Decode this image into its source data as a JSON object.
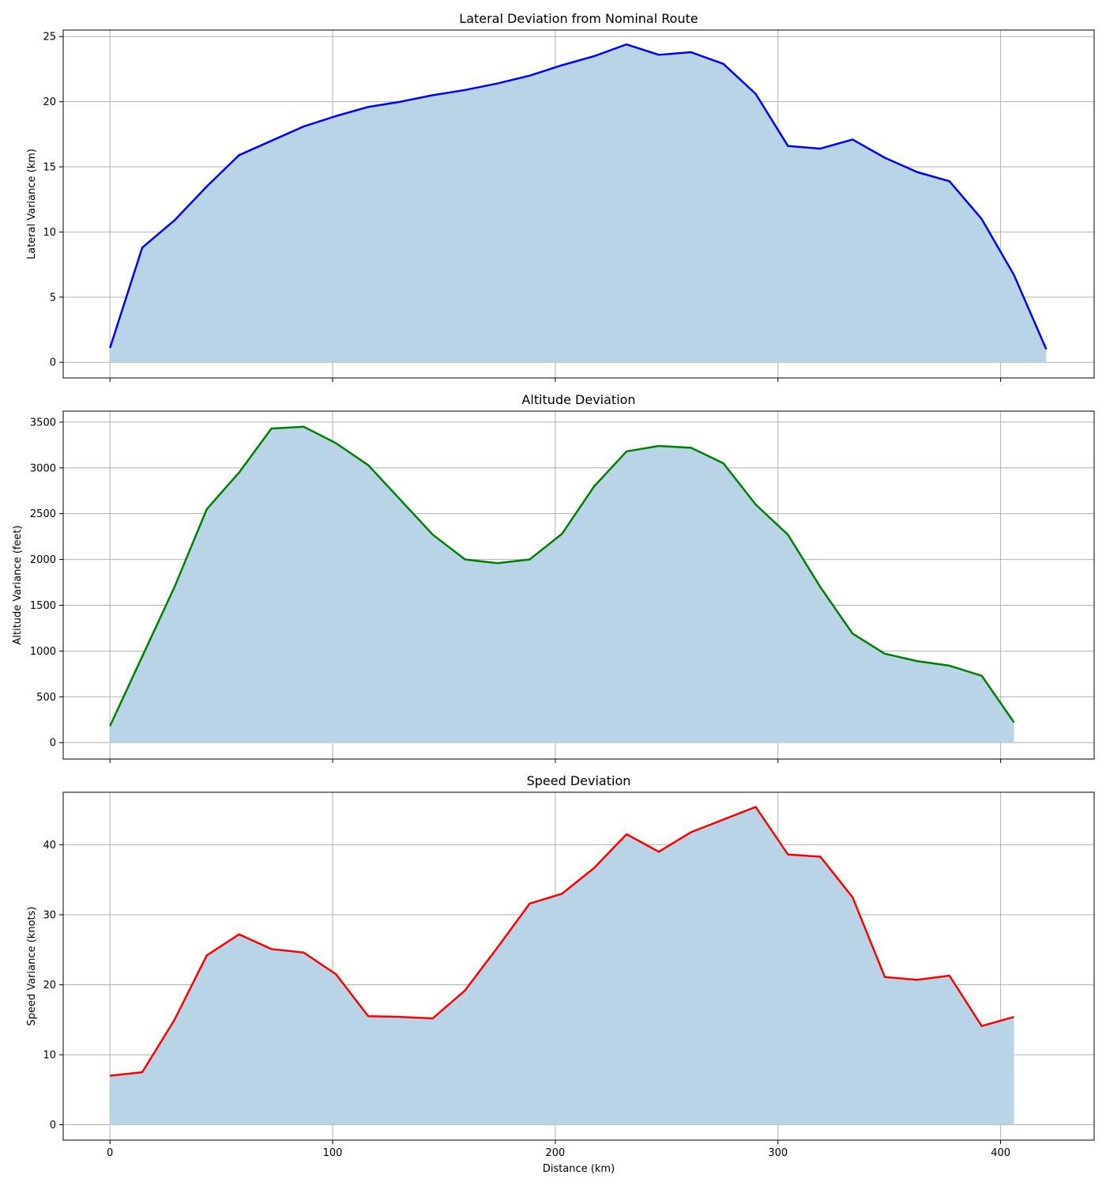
{
  "chart_data": [
    {
      "type": "area",
      "title": "Lateral Deviation from Nominal Route",
      "xlabel": "",
      "ylabel": "Lateral Variance (km)",
      "xlim": [
        -21,
        442
      ],
      "ylim": [
        -1.2,
        25.5
      ],
      "xticks": [
        0,
        100,
        200,
        300,
        400
      ],
      "yticks": [
        0,
        5,
        10,
        15,
        20,
        25
      ],
      "show_xtick_labels": false,
      "grid": true,
      "line_color": "#0000ff",
      "fill_color": "#bad4e7",
      "x": [
        0,
        14.5,
        29,
        43.5,
        58,
        72.5,
        87,
        101.5,
        116,
        130.5,
        145,
        159.5,
        174,
        188.5,
        203,
        217.5,
        232,
        246.5,
        261,
        275.5,
        290,
        304.5,
        319,
        333.5,
        348,
        362.5,
        377,
        391.5,
        406,
        420.5
      ],
      "y": [
        1.1,
        8.8,
        10.9,
        13.5,
        15.9,
        17.0,
        18.1,
        18.9,
        19.6,
        20.0,
        20.5,
        20.9,
        21.4,
        22.0,
        22.8,
        23.5,
        24.4,
        23.6,
        23.8,
        22.9,
        20.6,
        16.6,
        16.4,
        17.1,
        15.7,
        14.6,
        13.9,
        11.0,
        6.7,
        1.0
      ]
    },
    {
      "type": "area",
      "title": "Altitude Deviation",
      "xlabel": "",
      "ylabel": "Altitude Variance (feet)",
      "xlim": [
        -21,
        442
      ],
      "ylim": [
        -180,
        3620
      ],
      "xticks": [
        0,
        100,
        200,
        300,
        400
      ],
      "yticks": [
        0,
        500,
        1000,
        1500,
        2000,
        2500,
        3000,
        3500
      ],
      "show_xtick_labels": false,
      "grid": true,
      "line_color": "#008000",
      "fill_color": "#bad4e7",
      "x": [
        0,
        14.5,
        29,
        43.5,
        58,
        72.5,
        87,
        101.5,
        116,
        130.5,
        145,
        159.5,
        174,
        188.5,
        203,
        217.5,
        232,
        246.5,
        261,
        275.5,
        290,
        304.5,
        319,
        333.5,
        348,
        362.5,
        377,
        391.5,
        406
      ],
      "y": [
        180,
        940,
        1700,
        2550,
        2950,
        3430,
        3450,
        3270,
        3030,
        2650,
        2270,
        2000,
        1960,
        2000,
        2280,
        2800,
        3180,
        3240,
        3220,
        3050,
        2600,
        2270,
        1700,
        1190,
        970,
        890,
        840,
        730,
        220
      ]
    },
    {
      "type": "area",
      "title": "Speed Deviation",
      "xlabel": "Distance (km)",
      "ylabel": "Speed Variance (knots)",
      "xlim": [
        -21,
        442
      ],
      "ylim": [
        -2.2,
        47.5
      ],
      "xticks": [
        0,
        100,
        200,
        300,
        400
      ],
      "yticks": [
        0,
        10,
        20,
        30,
        40
      ],
      "show_xtick_labels": true,
      "grid": true,
      "line_color": "#ff0000",
      "fill_color": "#bad4e7",
      "x": [
        0,
        14.5,
        29,
        43.5,
        58,
        72.5,
        87,
        101.5,
        116,
        130.5,
        145,
        159.5,
        174,
        188.5,
        203,
        217.5,
        232,
        246.5,
        261,
        275.5,
        290,
        304.5,
        319,
        333.5,
        348,
        362.5,
        377,
        391.5,
        406
      ],
      "y": [
        7.0,
        7.5,
        15.0,
        24.2,
        27.2,
        25.1,
        24.6,
        21.5,
        15.5,
        15.4,
        15.2,
        19.2,
        25.3,
        31.6,
        33.0,
        36.7,
        41.5,
        39.0,
        41.8,
        43.6,
        45.4,
        38.6,
        38.3,
        32.5,
        21.1,
        20.7,
        21.3,
        14.1,
        15.4
      ]
    }
  ]
}
